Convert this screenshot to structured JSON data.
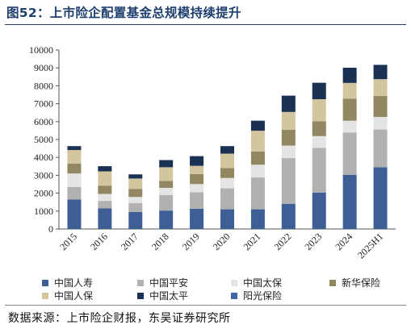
{
  "figure_title": "图52：上市险企配置基金总规模持续提升",
  "source_note": "数据来源：上市险企财报，东吴证券研究所",
  "chart_data": {
    "type": "bar",
    "stacked": true,
    "title": "",
    "xlabel": "",
    "ylabel": "",
    "ylim": [
      0,
      10000
    ],
    "yticks": [
      0,
      1000,
      2000,
      3000,
      4000,
      5000,
      6000,
      7000,
      8000,
      9000,
      10000
    ],
    "grid": false,
    "legend_position": "bottom",
    "categories": [
      "2015",
      "2016",
      "2017",
      "2018",
      "2019",
      "2020",
      "2021",
      "2022",
      "2023",
      "2024",
      "2025H1"
    ],
    "series": [
      {
        "name": "中国人寿",
        "color": "#3d5f96",
        "values": [
          1650,
          1150,
          950,
          1030,
          1130,
          1100,
          1100,
          1410,
          2030,
          3030,
          3450
        ]
      },
      {
        "name": "中国平安",
        "color": "#b1b1b1",
        "values": [
          700,
          420,
          490,
          870,
          920,
          1170,
          1780,
          2550,
          2500,
          2360,
          2110
        ]
      },
      {
        "name": "中国太保",
        "color": "#e4e4e4",
        "values": [
          750,
          390,
          350,
          400,
          460,
          580,
          710,
          700,
          660,
          660,
          700
        ]
      },
      {
        "name": "新华保险",
        "color": "#918760",
        "values": [
          550,
          450,
          440,
          390,
          560,
          560,
          740,
          890,
          830,
          1230,
          1170
        ]
      },
      {
        "name": "中国人保",
        "color": "#d3c69f",
        "values": [
          760,
          810,
          590,
          760,
          460,
          800,
          1160,
          990,
          1230,
          880,
          940
        ]
      },
      {
        "name": "中国太平",
        "color": "#1a3154",
        "values": [
          220,
          290,
          230,
          400,
          540,
          420,
          560,
          910,
          920,
          850,
          800
        ]
      },
      {
        "name": "阳光保险",
        "color": "#3e64a8",
        "values": [
          0,
          0,
          0,
          0,
          0,
          0,
          0,
          0,
          0,
          0,
          0
        ]
      }
    ]
  }
}
